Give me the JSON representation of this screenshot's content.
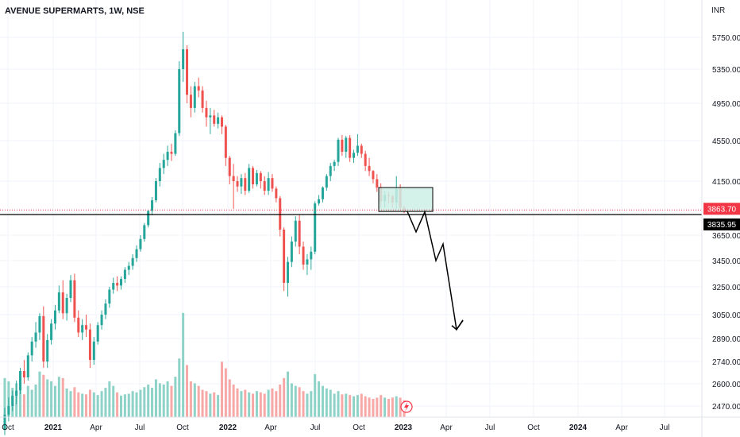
{
  "header": {
    "symbol_title": "AVENUE SUPERMARTS, 1W, NSE",
    "currency": "INR"
  },
  "price_labels": {
    "last_price": "3863.70",
    "line_price": "3835.95",
    "last_color": "#f23645",
    "line_color": "#000000"
  },
  "colors": {
    "up": "#26a69a",
    "down": "#ef5350",
    "grid": "#f0f3fa",
    "box_fill": "#cdeee6",
    "box_stroke": "#000000"
  },
  "chart_data": {
    "type": "candlestick",
    "symbol": "AVENUE SUPERMARTS",
    "interval": "1W",
    "exchange": "NSE",
    "currency": "INR",
    "y_ticks": [
      "5750.00",
      "5350.00",
      "4950.00",
      "4550.00",
      "4150.00",
      "3650.00",
      "3450.00",
      "3250.00",
      "3050.00",
      "2890.00",
      "2740.00",
      "2600.00",
      "2470.00"
    ],
    "x_ticks": [
      "Oct",
      "2021",
      "Apr",
      "Jul",
      "Oct",
      "2022",
      "Apr",
      "Jul",
      "Oct",
      "2023",
      "Apr",
      "Jul",
      "Oct",
      "2024",
      "Apr",
      "Jul"
    ],
    "horizontal_line": 3835.95,
    "last_price": 3863.7,
    "zone": {
      "top": 4090,
      "bottom": 3865
    },
    "projection_path": [
      [
        3865,
        3865
      ],
      [
        3865,
        3680
      ],
      [
        3865,
        3860
      ],
      [
        3450,
        3450
      ],
      [
        3450,
        3580
      ],
      [
        3000,
        3000
      ],
      [
        2910,
        2910
      ]
    ],
    "candles": [
      [
        2330,
        2460,
        2300,
        2420,
        60
      ],
      [
        2420,
        2520,
        2380,
        2470,
        55
      ],
      [
        2470,
        2560,
        2440,
        2530,
        45
      ],
      [
        2530,
        2620,
        2480,
        2560,
        52
      ],
      [
        2560,
        2700,
        2540,
        2680,
        40
      ],
      [
        2680,
        2750,
        2600,
        2640,
        35
      ],
      [
        2640,
        2800,
        2620,
        2780,
        48
      ],
      [
        2780,
        2900,
        2740,
        2870,
        42
      ],
      [
        2870,
        3000,
        2830,
        2930,
        50
      ],
      [
        2930,
        3060,
        2880,
        3040,
        70
      ],
      [
        3040,
        3110,
        2700,
        2740,
        65
      ],
      [
        2740,
        2920,
        2700,
        2880,
        58
      ],
      [
        2880,
        3020,
        2850,
        2990,
        55
      ],
      [
        2990,
        3120,
        2950,
        3080,
        48
      ],
      [
        3080,
        3260,
        3060,
        3210,
        62
      ],
      [
        3210,
        3300,
        3020,
        3060,
        60
      ],
      [
        3060,
        3200,
        3010,
        3170,
        44
      ],
      [
        3170,
        3340,
        3140,
        3300,
        40
      ],
      [
        3300,
        3350,
        3000,
        3030,
        46
      ],
      [
        3030,
        3080,
        2900,
        2930,
        38
      ],
      [
        2930,
        3020,
        2880,
        2980,
        36
      ],
      [
        2980,
        3050,
        2900,
        2950,
        35
      ],
      [
        2950,
        2990,
        2700,
        2750,
        42
      ],
      [
        2750,
        2900,
        2720,
        2870,
        38
      ],
      [
        2870,
        3000,
        2850,
        2980,
        34
      ],
      [
        2980,
        3080,
        2950,
        3050,
        40
      ],
      [
        3050,
        3160,
        3020,
        3130,
        45
      ],
      [
        3130,
        3250,
        3100,
        3230,
        55
      ],
      [
        3230,
        3320,
        3200,
        3280,
        48
      ],
      [
        3280,
        3330,
        3220,
        3260,
        38
      ],
      [
        3260,
        3330,
        3230,
        3310,
        33
      ],
      [
        3310,
        3400,
        3280,
        3380,
        35
      ],
      [
        3380,
        3440,
        3340,
        3410,
        36
      ],
      [
        3410,
        3500,
        3380,
        3470,
        40
      ],
      [
        3470,
        3570,
        3440,
        3540,
        38
      ],
      [
        3540,
        3650,
        3520,
        3620,
        42
      ],
      [
        3620,
        3760,
        3600,
        3740,
        46
      ],
      [
        3740,
        3880,
        3720,
        3870,
        50
      ],
      [
        3870,
        4000,
        3830,
        3970,
        45
      ],
      [
        3970,
        4180,
        3950,
        4150,
        58
      ],
      [
        4150,
        4330,
        4100,
        4280,
        52
      ],
      [
        4280,
        4420,
        4220,
        4360,
        50
      ],
      [
        4360,
        4500,
        4300,
        4440,
        55
      ],
      [
        4440,
        4520,
        4350,
        4420,
        48
      ],
      [
        4420,
        4660,
        4400,
        4630,
        62
      ],
      [
        4630,
        5450,
        4600,
        5350,
        90
      ],
      [
        5350,
        5820,
        5200,
        5600,
        160
      ],
      [
        5600,
        5650,
        4950,
        5050,
        80
      ],
      [
        5050,
        5150,
        4800,
        4900,
        55
      ],
      [
        4900,
        5200,
        4850,
        5150,
        52
      ],
      [
        5150,
        5250,
        5020,
        5100,
        48
      ],
      [
        5100,
        5150,
        4850,
        4900,
        42
      ],
      [
        4900,
        4980,
        4700,
        4800,
        40
      ],
      [
        4800,
        4900,
        4620,
        4820,
        36
      ],
      [
        4820,
        4880,
        4700,
        4730,
        38
      ],
      [
        4730,
        4850,
        4680,
        4800,
        34
      ],
      [
        4800,
        4820,
        4620,
        4700,
        85
      ],
      [
        4700,
        4720,
        4300,
        4380,
        75
      ],
      [
        4380,
        4400,
        4120,
        4200,
        58
      ],
      [
        4200,
        4320,
        3890,
        4150,
        50
      ],
      [
        4150,
        4200,
        4050,
        4100,
        44
      ],
      [
        4100,
        4220,
        4030,
        4180,
        40
      ],
      [
        4180,
        4230,
        4020,
        4060,
        42
      ],
      [
        4060,
        4320,
        4040,
        4280,
        38
      ],
      [
        4280,
        4300,
        4080,
        4120,
        36
      ],
      [
        4120,
        4260,
        4100,
        4230,
        40
      ],
      [
        4230,
        4250,
        4080,
        4150,
        38
      ],
      [
        4150,
        4200,
        4020,
        4060,
        36
      ],
      [
        4060,
        4240,
        4020,
        4180,
        42
      ],
      [
        4180,
        4220,
        4050,
        4080,
        44
      ],
      [
        4080,
        4100,
        3950,
        3990,
        40
      ],
      [
        3990,
        4010,
        3640,
        3700,
        50
      ],
      [
        3700,
        3720,
        3220,
        3280,
        60
      ],
      [
        3280,
        3480,
        3180,
        3440,
        70
      ],
      [
        3440,
        3640,
        3400,
        3600,
        52
      ],
      [
        3600,
        3820,
        3560,
        3780,
        48
      ],
      [
        3780,
        3830,
        3500,
        3560,
        46
      ],
      [
        3560,
        3600,
        3380,
        3420,
        40
      ],
      [
        3420,
        3500,
        3340,
        3460,
        36
      ],
      [
        3460,
        3560,
        3380,
        3520,
        40
      ],
      [
        3520,
        3960,
        3500,
        3940,
        66
      ],
      [
        3940,
        4020,
        3920,
        3980,
        55
      ],
      [
        3980,
        4100,
        3950,
        4090,
        48
      ],
      [
        4090,
        4220,
        4060,
        4200,
        44
      ],
      [
        4200,
        4330,
        4150,
        4300,
        42
      ],
      [
        4300,
        4360,
        4250,
        4340,
        36
      ],
      [
        4340,
        4580,
        4300,
        4560,
        40
      ],
      [
        4560,
        4610,
        4400,
        4440,
        35
      ],
      [
        4440,
        4600,
        4380,
        4580,
        36
      ],
      [
        4580,
        4610,
        4340,
        4380,
        34
      ],
      [
        4380,
        4460,
        4330,
        4430,
        32
      ],
      [
        4430,
        4620,
        4400,
        4500,
        34
      ],
      [
        4500,
        4520,
        4380,
        4420,
        36
      ],
      [
        4420,
        4450,
        4250,
        4300,
        32
      ],
      [
        4300,
        4380,
        4200,
        4250,
        30
      ],
      [
        4250,
        4260,
        4130,
        4170,
        28
      ],
      [
        4170,
        4220,
        4050,
        4090,
        30
      ],
      [
        4090,
        4130,
        3900,
        3960,
        34
      ],
      [
        3960,
        4060,
        3900,
        4020,
        30
      ],
      [
        4020,
        4050,
        3940,
        4010,
        28
      ],
      [
        4010,
        4020,
        3900,
        3950,
        30
      ],
      [
        3950,
        4200,
        3890,
        4080,
        32
      ],
      [
        4080,
        4120,
        3880,
        3900,
        30
      ],
      [
        3900,
        3920,
        3850,
        3864,
        26
      ]
    ]
  }
}
